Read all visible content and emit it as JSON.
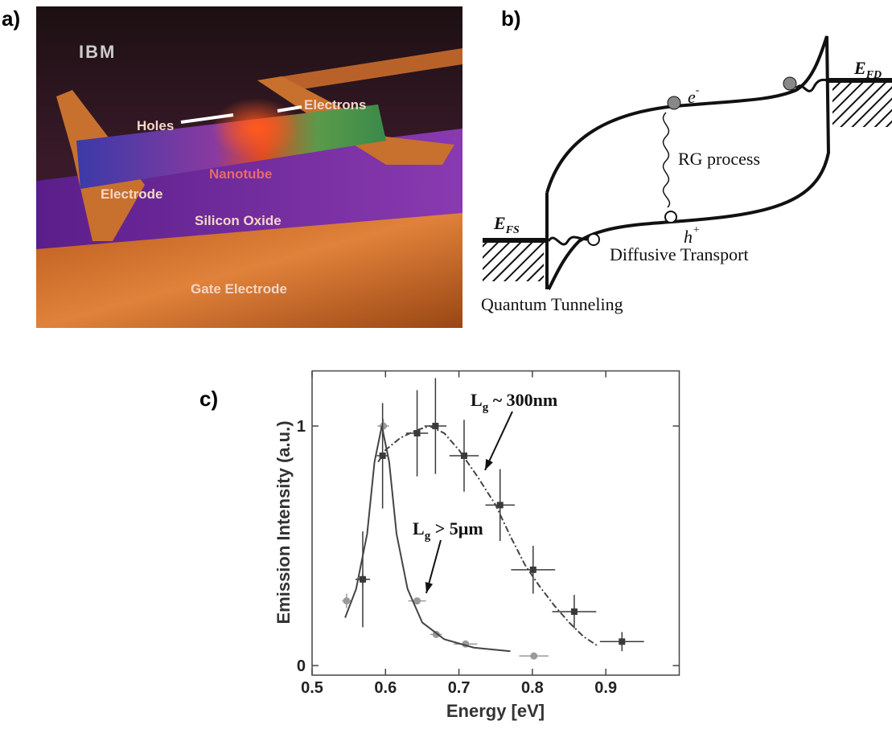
{
  "panel_a": {
    "label": "a)",
    "labels": {
      "logo": "IBM",
      "holes": "Holes",
      "electrons": "Electrons",
      "nanotube": "Nanotube",
      "electrode": "Electrode",
      "oxide": "Silicon Oxide",
      "gate": "Gate Electrode"
    }
  },
  "panel_b": {
    "label": "b)",
    "e_fd": {
      "text": "E",
      "sub": "FD"
    },
    "e_fs": {
      "text": "E",
      "sub": "FS"
    },
    "electron": {
      "text": "e",
      "sup": "-"
    },
    "hole": {
      "text": "h",
      "sup": "+"
    },
    "rg": "RG process",
    "diffusive": "Diffusive Transport",
    "tunneling": "Quantum Tunneling"
  },
  "chart_data": {
    "type": "scatter",
    "label": "c)",
    "xlabel": "Energy [eV]",
    "ylabel": "Emission Intensity (a.u.)",
    "xlim": [
      0.5,
      1.0
    ],
    "ylim": [
      -0.04,
      1.23
    ],
    "xticks": [
      0.5,
      0.6,
      0.7,
      0.8,
      0.9
    ],
    "yticks": [
      0,
      1
    ],
    "series": [
      {
        "color": "#9a9a9a",
        "marker": "circle",
        "x": [
          0.547,
          0.569,
          0.597,
          0.643,
          0.669,
          0.709,
          0.802
        ],
        "values": [
          0.27,
          0.36,
          1.0,
          0.27,
          0.13,
          0.09,
          0.04
        ],
        "xerr": [
          0.006,
          0.008,
          0.008,
          0.012,
          0.008,
          0.016,
          0.02
        ],
        "yerr": [
          0.03,
          0.03,
          0.03,
          0.01,
          0.01,
          0.01,
          0.01
        ]
      },
      {
        "color": "#3a3a3a",
        "marker": "square",
        "x": [
          0.569,
          0.596,
          0.643,
          0.668,
          0.707,
          0.756,
          0.801,
          0.857,
          0.922
        ],
        "values": [
          0.36,
          0.876,
          0.97,
          1.0,
          0.876,
          0.67,
          0.4,
          0.225,
          0.1
        ],
        "xerr": [
          0.01,
          0.008,
          0.015,
          0.015,
          0.02,
          0.02,
          0.03,
          0.03,
          0.03
        ],
        "yerr": [
          0.2,
          0.22,
          0.18,
          0.2,
          0.15,
          0.15,
          0.1,
          0.07,
          0.04
        ]
      },
      {
        "color": "#444444",
        "line": "solid",
        "x": [
          0.545,
          0.56,
          0.575,
          0.585,
          0.595,
          0.605,
          0.615,
          0.63,
          0.65,
          0.68,
          0.72,
          0.77
        ],
        "values": [
          0.2,
          0.32,
          0.55,
          0.85,
          1.0,
          0.85,
          0.55,
          0.32,
          0.18,
          0.11,
          0.075,
          0.06
        ]
      },
      {
        "color": "#444444",
        "line": "dashdot",
        "x": [
          0.59,
          0.6,
          0.62,
          0.64,
          0.66,
          0.68,
          0.7,
          0.725,
          0.75,
          0.77,
          0.79,
          0.81,
          0.83,
          0.85,
          0.87,
          0.89
        ],
        "values": [
          0.85,
          0.9,
          0.95,
          0.98,
          1.0,
          0.97,
          0.9,
          0.79,
          0.67,
          0.54,
          0.42,
          0.33,
          0.25,
          0.18,
          0.12,
          0.08
        ]
      }
    ],
    "annotations": [
      {
        "text": "L",
        "sub": "g",
        "rest": " ~ 300nm"
      },
      {
        "text": "L",
        "sub": "g",
        "rest": " > 5µm"
      }
    ]
  }
}
